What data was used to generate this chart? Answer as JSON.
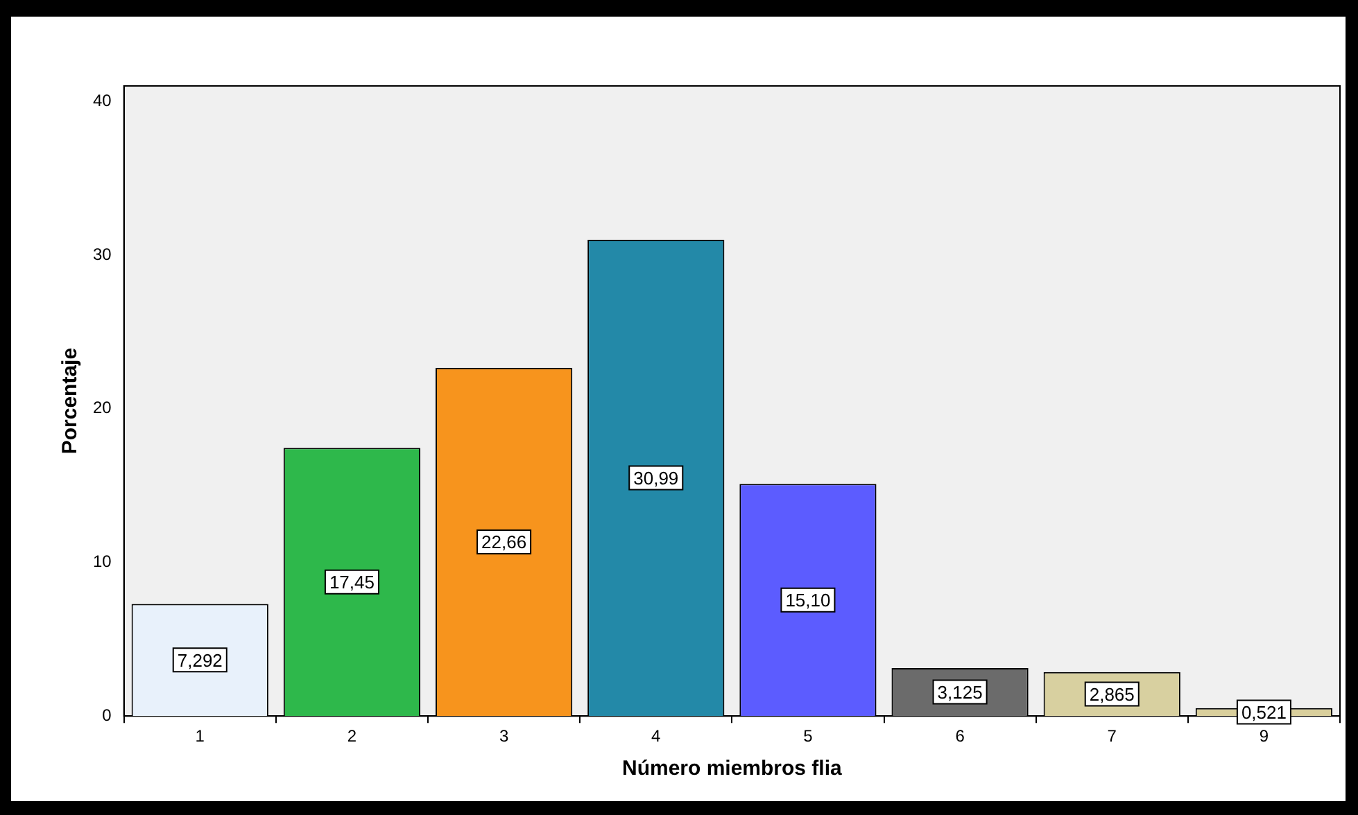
{
  "chart_data": {
    "type": "bar",
    "xlabel": "Número miembros flia",
    "ylabel": "Porcentaje",
    "categories": [
      "1",
      "2",
      "3",
      "4",
      "5",
      "6",
      "7",
      "9"
    ],
    "values": [
      7.292,
      17.45,
      22.66,
      30.99,
      15.1,
      3.125,
      2.865,
      0.521
    ],
    "value_labels": [
      "7,292",
      "17,45",
      "22,66",
      "30,99",
      "15,10",
      "3,125",
      "2,865",
      "0,521"
    ],
    "colors": [
      "#e8f1fb",
      "#2eb84b",
      "#f7941d",
      "#2389a8",
      "#5c5cff",
      "#6b6b6b",
      "#d8d0a0",
      "#d9cf9c"
    ],
    "ylim": [
      0,
      41
    ],
    "yticks": [
      0,
      10,
      20,
      30,
      40
    ],
    "grid": false,
    "legend": false
  }
}
